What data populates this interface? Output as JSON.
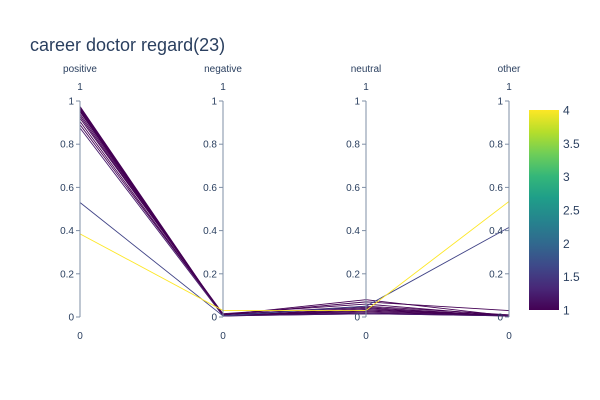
{
  "chart_data": {
    "type": "parallel_coordinates",
    "title": "career doctor regard(23)",
    "dimensions": [
      {
        "label": "positive",
        "range": [
          0,
          1
        ],
        "ticks": [
          "0",
          "0.2",
          "0.4",
          "0.6",
          "0.8",
          "1"
        ],
        "top_label": "1",
        "bottom_label": "0"
      },
      {
        "label": "negative",
        "range": [
          0,
          1
        ],
        "ticks": [
          "0",
          "0.2",
          "0.4",
          "0.6",
          "0.8",
          "1"
        ],
        "top_label": "1",
        "bottom_label": "0"
      },
      {
        "label": "neutral",
        "range": [
          0,
          1
        ],
        "ticks": [
          "0",
          "0.2",
          "0.4",
          "0.6",
          "0.8",
          "1"
        ],
        "top_label": "1",
        "bottom_label": "0"
      },
      {
        "label": "other",
        "range": [
          0,
          1
        ],
        "ticks": [
          "0",
          "0.2",
          "0.4",
          "0.6",
          "0.8",
          "1"
        ],
        "top_label": "1",
        "bottom_label": "0"
      }
    ],
    "lines": [
      {
        "values": [
          0.975,
          0.005,
          0.015,
          0.005
        ],
        "color_value": 1
      },
      {
        "values": [
          0.97,
          0.005,
          0.02,
          0.005
        ],
        "color_value": 1
      },
      {
        "values": [
          0.965,
          0.005,
          0.025,
          0.005
        ],
        "color_value": 1
      },
      {
        "values": [
          0.96,
          0.005,
          0.03,
          0.005
        ],
        "color_value": 1
      },
      {
        "values": [
          0.955,
          0.005,
          0.035,
          0.005
        ],
        "color_value": 1
      },
      {
        "values": [
          0.95,
          0.005,
          0.04,
          0.005
        ],
        "color_value": 1
      },
      {
        "values": [
          0.94,
          0.01,
          0.045,
          0.005
        ],
        "color_value": 1
      },
      {
        "values": [
          0.93,
          0.01,
          0.05,
          0.01
        ],
        "color_value": 1
      },
      {
        "values": [
          0.92,
          0.015,
          0.06,
          0.005
        ],
        "color_value": 1
      },
      {
        "values": [
          0.905,
          0.01,
          0.08,
          0.005
        ],
        "color_value": 1
      },
      {
        "values": [
          0.89,
          0.01,
          0.07,
          0.03
        ],
        "color_value": 1
      },
      {
        "values": [
          0.875,
          0.005,
          0.015,
          0.005
        ],
        "color_value": 1.2
      },
      {
        "values": [
          0.53,
          0.005,
          0.05,
          0.415
        ],
        "color_value": 1.6
      },
      {
        "values": [
          0.385,
          0.03,
          0.03,
          0.535
        ],
        "color_value": 4
      }
    ],
    "colorscale": {
      "name": "Viridis",
      "range": [
        1,
        4
      ],
      "ticks": [
        "1",
        "1.5",
        "2",
        "2.5",
        "3",
        "3.5",
        "4"
      ]
    }
  }
}
